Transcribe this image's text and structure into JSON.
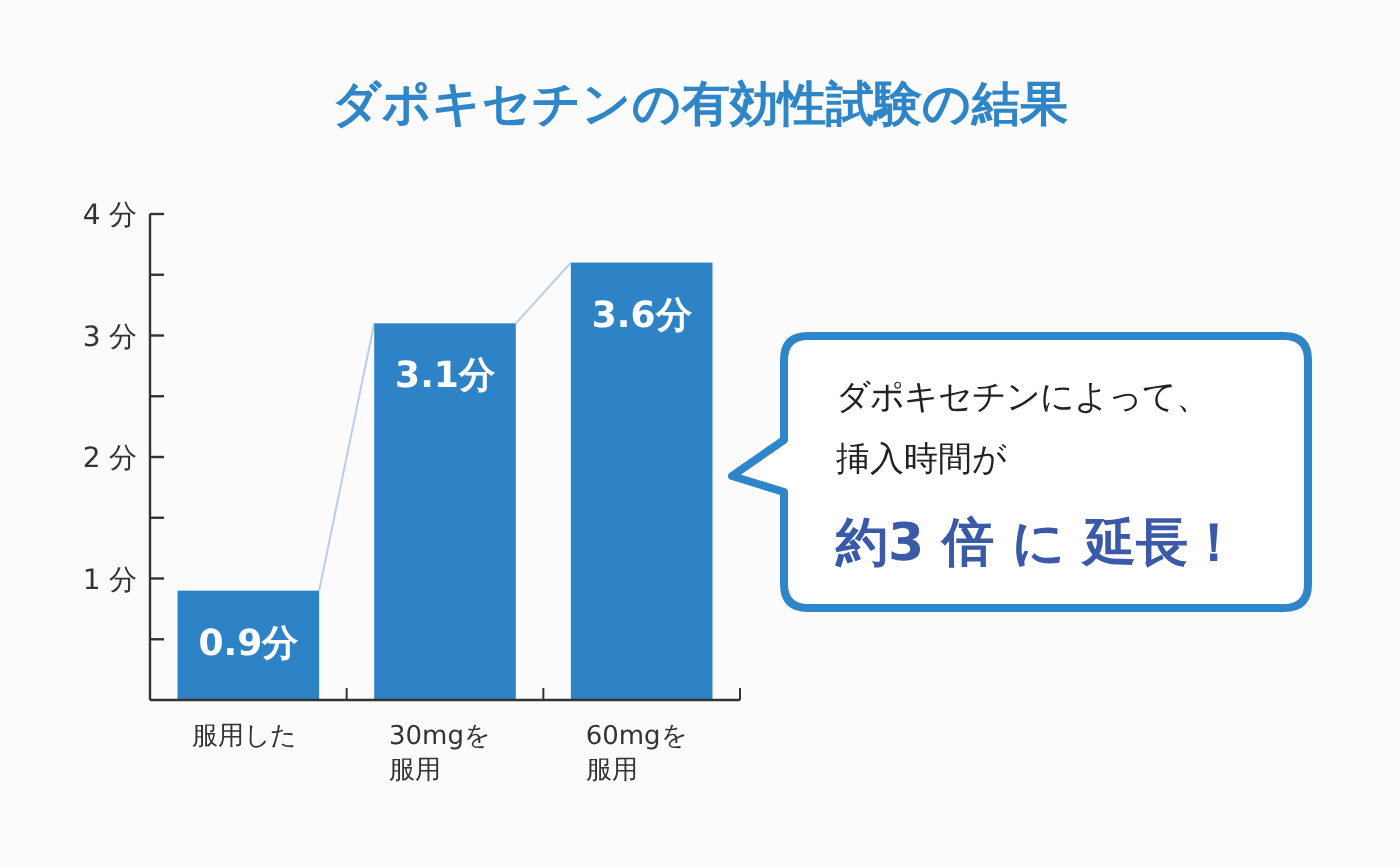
{
  "chart_data": {
    "type": "bar",
    "title": "ダポキセチンの有効性試験の結果",
    "categories": [
      "服用した",
      "30mgを服用",
      "60mgを服用"
    ],
    "values": [
      0.9,
      3.1,
      3.6
    ],
    "color": "#2e82c6",
    "value_labels": [
      "0.9分",
      "3.1分",
      "3.6分"
    ],
    "ylim": [
      0,
      4
    ],
    "yticks": [
      {
        "value": 0.5,
        "label": null
      },
      {
        "value": 1,
        "label": "1 分"
      },
      {
        "value": 1.5,
        "label": null
      },
      {
        "value": 2,
        "label": "2 分"
      },
      {
        "value": 2.5,
        "label": null
      },
      {
        "value": 3,
        "label": "3 分"
      },
      {
        "value": 3.5,
        "label": null
      },
      {
        "value": 4,
        "label": "4 分"
      }
    ],
    "grid": false,
    "annotations": [
      "ダポキセチンによって、",
      "挿入時間が",
      "約3 倍 に 延長！"
    ]
  }
}
